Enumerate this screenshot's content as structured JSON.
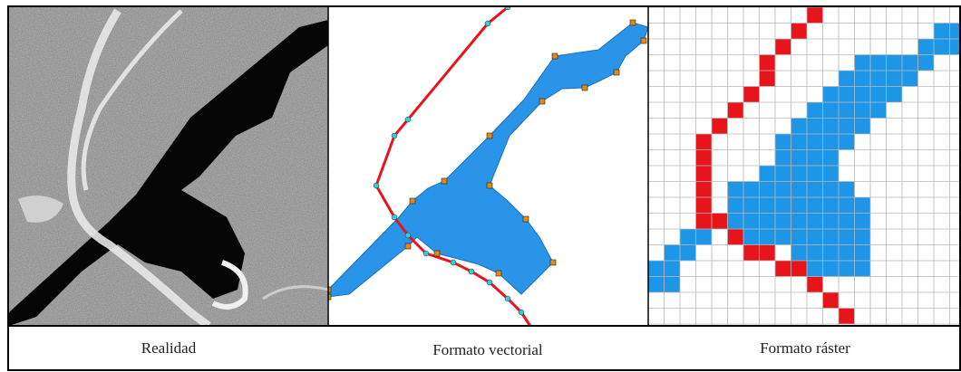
{
  "captions": [
    "Realidad",
    "Formato vectorial",
    "Formato ráster"
  ]
}
